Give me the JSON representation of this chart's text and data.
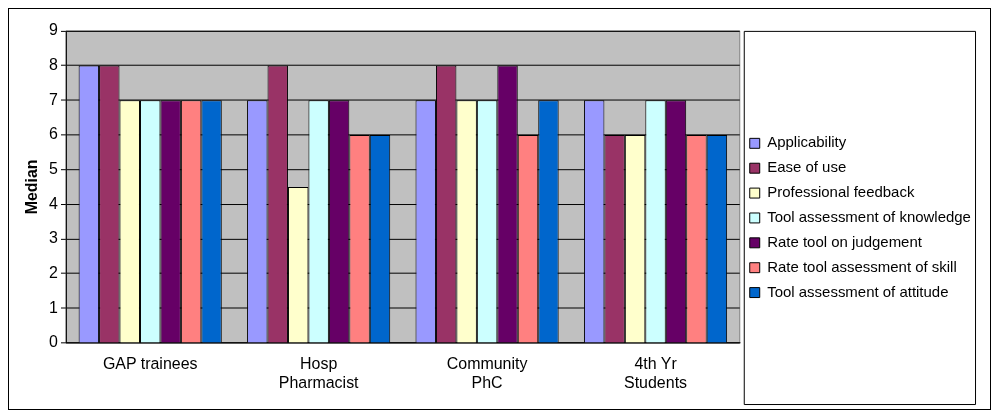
{
  "chart_data": {
    "type": "bar",
    "ylabel": "Median",
    "categories": [
      "GAP trainees",
      "Hosp Pharmacist",
      "Community PhC",
      "4th Yr Students"
    ],
    "series": [
      {
        "name": "Applicability",
        "color": "#9999ff",
        "values": [
          8,
          7,
          7,
          7
        ]
      },
      {
        "name": "Ease of use",
        "color": "#993366",
        "values": [
          8,
          8,
          8,
          6
        ]
      },
      {
        "name": "Professional feedback",
        "color": "#ffffcc",
        "values": [
          7,
          4.5,
          7,
          6
        ]
      },
      {
        "name": "Tool assessment of knowledge",
        "color": "#ccffff",
        "values": [
          7,
          7,
          7,
          7
        ]
      },
      {
        "name": "Rate tool on judgement",
        "color": "#660066",
        "values": [
          7,
          7,
          8,
          7
        ]
      },
      {
        "name": "Rate tool assessment of skill",
        "color": "#ff8080",
        "values": [
          7,
          6,
          6,
          6
        ]
      },
      {
        "name": "Tool assessment of attitude",
        "color": "#0066cc",
        "values": [
          7,
          6,
          7,
          6
        ]
      }
    ],
    "ylim": [
      0,
      9
    ],
    "yticks": [
      0,
      1,
      2,
      3,
      4,
      5,
      6,
      7,
      8,
      9
    ],
    "grid": "y",
    "legend": "right"
  }
}
